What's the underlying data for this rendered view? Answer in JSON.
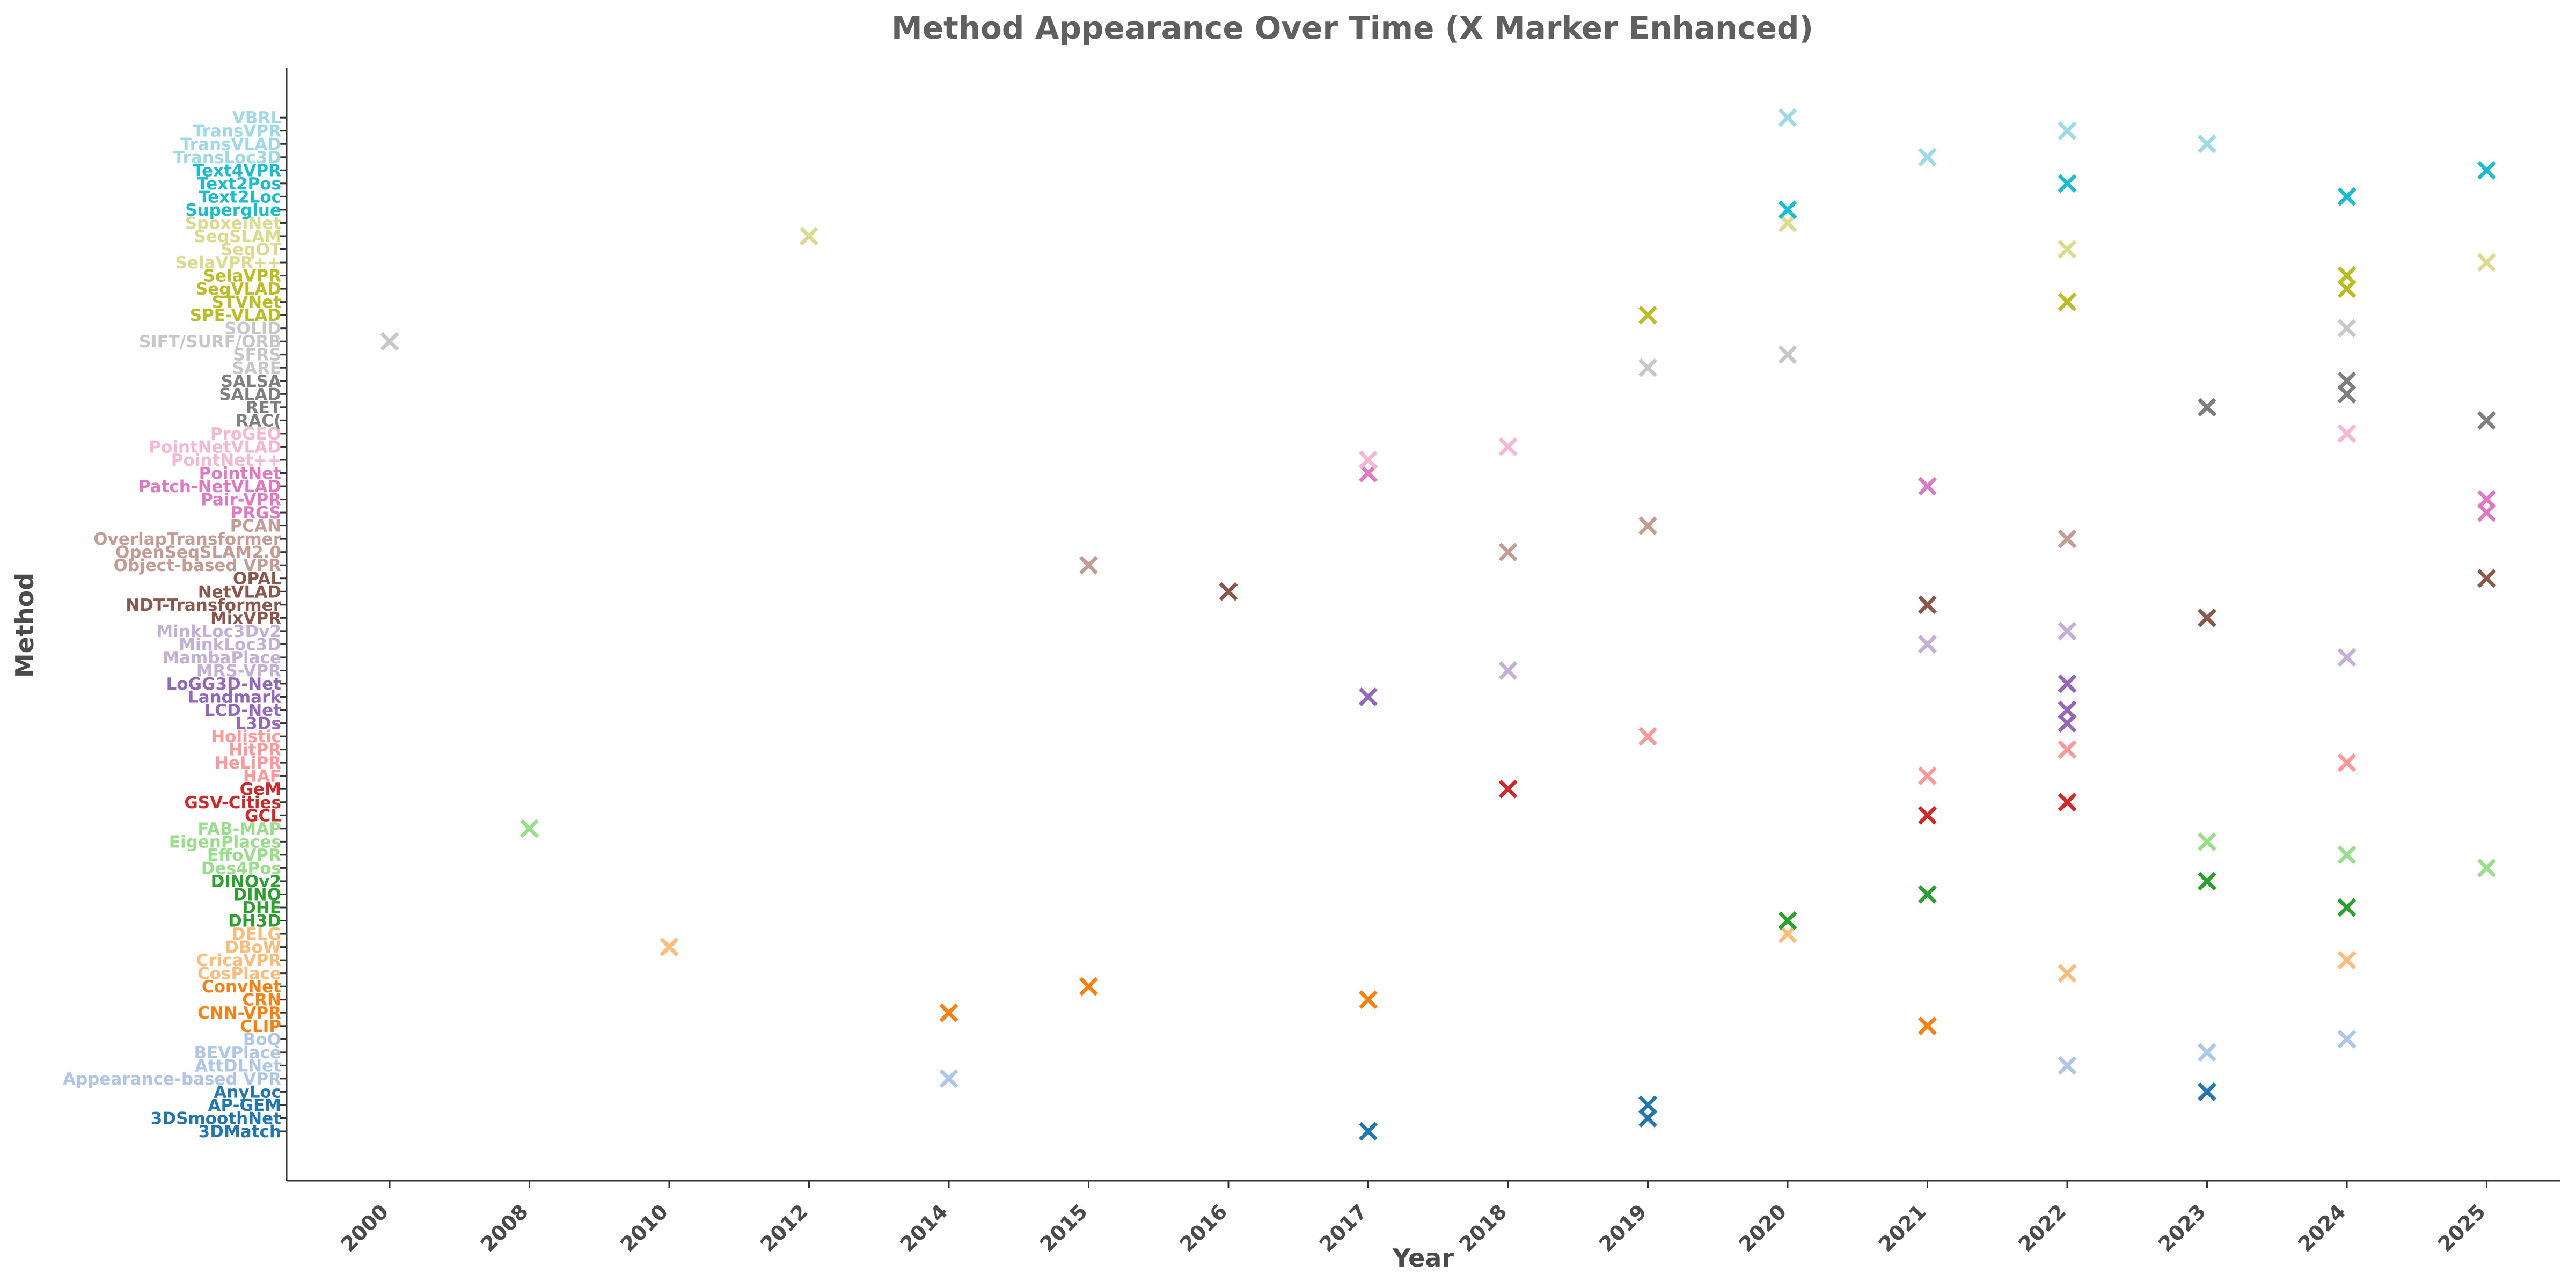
{
  "chart_data": {
    "type": "scatter",
    "title": "Method Appearance Over Time (X Marker Enhanced)",
    "xlabel": "Year",
    "ylabel": "Method",
    "marker": "x",
    "grid": false,
    "x_categories": [
      "2000",
      "2008",
      "2010",
      "2012",
      "2014",
      "2015",
      "2016",
      "2017",
      "2018",
      "2019",
      "2020",
      "2021",
      "2022",
      "2023",
      "2024",
      "2025"
    ],
    "methods": [
      {
        "name": "3DMatch",
        "color": "#1f77b4",
        "years": [
          "2017"
        ]
      },
      {
        "name": "3DSmoothNet",
        "color": "#1f77b4",
        "years": [
          "2019"
        ]
      },
      {
        "name": "AP-GEM",
        "color": "#1f77b4",
        "years": [
          "2019"
        ]
      },
      {
        "name": "AnyLoc",
        "color": "#1f77b4",
        "years": [
          "2023"
        ]
      },
      {
        "name": "Appearance-based VPR",
        "color": "#aec7e8",
        "years": [
          "2014"
        ]
      },
      {
        "name": "AttDLNet",
        "color": "#aec7e8",
        "years": [
          "2022"
        ]
      },
      {
        "name": "BEVPlace",
        "color": "#aec7e8",
        "years": [
          "2023"
        ]
      },
      {
        "name": "BoQ",
        "color": "#aec7e8",
        "years": [
          "2024"
        ]
      },
      {
        "name": "CLIP",
        "color": "#ff7f0e",
        "years": [
          "2021"
        ]
      },
      {
        "name": "CNN-VPR",
        "color": "#ff7f0e",
        "years": [
          "2014"
        ]
      },
      {
        "name": "CRN",
        "color": "#ff7f0e",
        "years": [
          "2017"
        ]
      },
      {
        "name": "ConvNet",
        "color": "#ff7f0e",
        "years": [
          "2015"
        ]
      },
      {
        "name": "CosPlace",
        "color": "#ffbb78",
        "years": [
          "2022"
        ]
      },
      {
        "name": "CricaVPR",
        "color": "#ffbb78",
        "years": [
          "2024"
        ]
      },
      {
        "name": "DBoW",
        "color": "#ffbb78",
        "years": [
          "2010"
        ]
      },
      {
        "name": "DELG",
        "color": "#ffbb78",
        "years": [
          "2020"
        ]
      },
      {
        "name": "DH3D",
        "color": "#2ca02c",
        "years": [
          "2020"
        ]
      },
      {
        "name": "DHE",
        "color": "#2ca02c",
        "years": [
          "2024"
        ]
      },
      {
        "name": "DINO",
        "color": "#2ca02c",
        "years": [
          "2021"
        ]
      },
      {
        "name": "DINOv2",
        "color": "#2ca02c",
        "years": [
          "2023"
        ]
      },
      {
        "name": "Des4Pos",
        "color": "#98df8a",
        "years": [
          "2025"
        ]
      },
      {
        "name": "EffoVPR",
        "color": "#98df8a",
        "years": [
          "2024"
        ]
      },
      {
        "name": "EigenPlaces",
        "color": "#98df8a",
        "years": [
          "2023"
        ]
      },
      {
        "name": "FAB-MAP",
        "color": "#98df8a",
        "years": [
          "2008"
        ]
      },
      {
        "name": "GCL",
        "color": "#d62728",
        "years": [
          "2021"
        ]
      },
      {
        "name": "GSV-Cities",
        "color": "#d62728",
        "years": [
          "2022"
        ]
      },
      {
        "name": "GeM",
        "color": "#d62728",
        "years": [
          "2018"
        ]
      },
      {
        "name": "HAF",
        "color": "#ff9896",
        "years": [
          "2021"
        ]
      },
      {
        "name": "HeLiPR",
        "color": "#ff9896",
        "years": [
          "2024"
        ]
      },
      {
        "name": "HitPR",
        "color": "#ff9896",
        "years": [
          "2022"
        ]
      },
      {
        "name": "Holistic",
        "color": "#ff9896",
        "years": [
          "2019"
        ]
      },
      {
        "name": "L3Ds",
        "color": "#9467bd",
        "years": [
          "2022"
        ]
      },
      {
        "name": "LCD-Net",
        "color": "#9467bd",
        "years": [
          "2022"
        ]
      },
      {
        "name": "Landmark",
        "color": "#9467bd",
        "years": [
          "2017"
        ]
      },
      {
        "name": "LoGG3D-Net",
        "color": "#9467bd",
        "years": [
          "2022"
        ]
      },
      {
        "name": "MRS-VPR",
        "color": "#c5b0d5",
        "years": [
          "2018"
        ]
      },
      {
        "name": "MambaPlace",
        "color": "#c5b0d5",
        "years": [
          "2024"
        ]
      },
      {
        "name": "MinkLoc3D",
        "color": "#c5b0d5",
        "years": [
          "2021"
        ]
      },
      {
        "name": "MinkLoc3Dv2",
        "color": "#c5b0d5",
        "years": [
          "2022"
        ]
      },
      {
        "name": "MixVPR",
        "color": "#8c564b",
        "years": [
          "2023"
        ]
      },
      {
        "name": "NDT-Transformer",
        "color": "#8c564b",
        "years": [
          "2021"
        ]
      },
      {
        "name": "NetVLAD",
        "color": "#8c564b",
        "years": [
          "2016"
        ]
      },
      {
        "name": "OPAL",
        "color": "#8c564b",
        "years": [
          "2025"
        ]
      },
      {
        "name": "Object-based VPR",
        "color": "#c49c94",
        "years": [
          "2015"
        ]
      },
      {
        "name": "OpenSeqSLAM2.0",
        "color": "#c49c94",
        "years": [
          "2018"
        ]
      },
      {
        "name": "OverlapTransformer",
        "color": "#c49c94",
        "years": [
          "2022"
        ]
      },
      {
        "name": "PCAN",
        "color": "#c49c94",
        "years": [
          "2019"
        ]
      },
      {
        "name": "PRGS",
        "color": "#e377c2",
        "years": [
          "2025"
        ]
      },
      {
        "name": "Pair-VPR",
        "color": "#e377c2",
        "years": [
          "2025"
        ]
      },
      {
        "name": "Patch-NetVLAD",
        "color": "#e377c2",
        "years": [
          "2021"
        ]
      },
      {
        "name": "PointNet",
        "color": "#e377c2",
        "years": [
          "2017"
        ]
      },
      {
        "name": "PointNet++",
        "color": "#f7b6d2",
        "years": [
          "2017"
        ]
      },
      {
        "name": "PointNetVLAD",
        "color": "#f7b6d2",
        "years": [
          "2018"
        ]
      },
      {
        "name": "ProGEO",
        "color": "#f7b6d2",
        "years": [
          "2024"
        ]
      },
      {
        "name": "RAC(",
        "color": "#7f7f7f",
        "years": [
          "2025"
        ]
      },
      {
        "name": "RET",
        "color": "#7f7f7f",
        "years": [
          "2023"
        ]
      },
      {
        "name": "SALAD",
        "color": "#7f7f7f",
        "years": [
          "2024"
        ]
      },
      {
        "name": "SALSA",
        "color": "#7f7f7f",
        "years": [
          "2024"
        ]
      },
      {
        "name": "SARE",
        "color": "#c7c7c7",
        "years": [
          "2019"
        ]
      },
      {
        "name": "SFRS",
        "color": "#c7c7c7",
        "years": [
          "2020"
        ]
      },
      {
        "name": "SIFT/SURF/ORB",
        "color": "#c7c7c7",
        "years": [
          "2000"
        ]
      },
      {
        "name": "SOLID",
        "color": "#c7c7c7",
        "years": [
          "2024"
        ]
      },
      {
        "name": "SPE-VLAD",
        "color": "#bcbd22",
        "years": [
          "2019"
        ]
      },
      {
        "name": "STVNet",
        "color": "#bcbd22",
        "years": [
          "2022"
        ]
      },
      {
        "name": "SegVLAD",
        "color": "#bcbd22",
        "years": [
          "2024"
        ]
      },
      {
        "name": "SelaVPR",
        "color": "#bcbd22",
        "years": [
          "2024"
        ]
      },
      {
        "name": "SelaVPR++",
        "color": "#dbdb8d",
        "years": [
          "2025"
        ]
      },
      {
        "name": "SeqOT",
        "color": "#dbdb8d",
        "years": [
          "2022"
        ]
      },
      {
        "name": "SeqSLAM",
        "color": "#dbdb8d",
        "years": [
          "2012"
        ]
      },
      {
        "name": "SpoxelNet",
        "color": "#dbdb8d",
        "years": [
          "2020"
        ]
      },
      {
        "name": "Superglue",
        "color": "#17becf",
        "years": [
          "2020"
        ]
      },
      {
        "name": "Text2Loc",
        "color": "#17becf",
        "years": [
          "2024"
        ]
      },
      {
        "name": "Text2Pos",
        "color": "#17becf",
        "years": [
          "2022"
        ]
      },
      {
        "name": "Text4VPR",
        "color": "#17becf",
        "years": [
          "2025"
        ]
      },
      {
        "name": "TransLoc3D",
        "color": "#9edae5",
        "years": [
          "2021"
        ]
      },
      {
        "name": "TransVLAD",
        "color": "#9edae5",
        "years": [
          "2023"
        ]
      },
      {
        "name": "TransVPR",
        "color": "#9edae5",
        "years": [
          "2022"
        ]
      },
      {
        "name": "VBRL",
        "color": "#9edae5",
        "years": [
          "2020"
        ]
      }
    ]
  }
}
